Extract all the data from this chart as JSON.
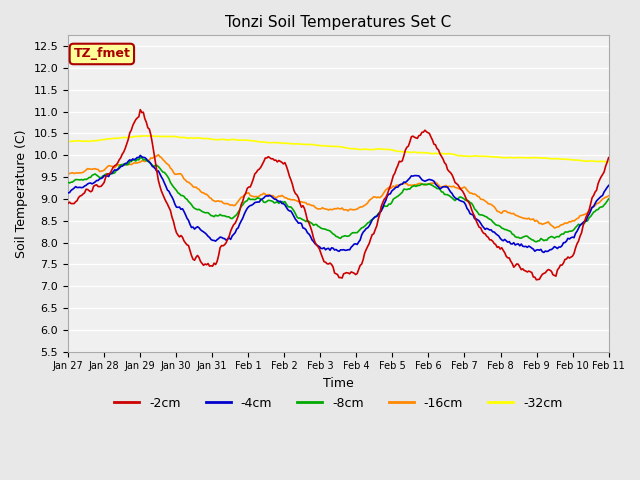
{
  "title": "Tonzi Soil Temperatures Set C",
  "xlabel": "Time",
  "ylabel": "Soil Temperature (C)",
  "ylim": [
    5.5,
    12.75
  ],
  "yticks": [
    5.5,
    6.0,
    6.5,
    7.0,
    7.5,
    8.0,
    8.5,
    9.0,
    9.5,
    10.0,
    10.5,
    11.0,
    11.5,
    12.0,
    12.5
  ],
  "xtick_labels": [
    "Jan 27",
    "Jan 28",
    "Jan 29",
    "Jan 30",
    "Jan 31",
    "Feb 1",
    "Feb 2",
    "Feb 3",
    "Feb 4",
    "Feb 5",
    "Feb 6",
    "Feb 7",
    "Feb 8",
    "Feb 9",
    "Feb 10",
    "Feb 11"
  ],
  "colors": {
    "-2cm": "#cc0000",
    "-4cm": "#0000cc",
    "-8cm": "#00aa00",
    "-16cm": "#ff8800",
    "-32cm": "#ffff00"
  },
  "legend_labels": [
    "-2cm",
    "-4cm",
    "-8cm",
    "-16cm",
    "-32cm"
  ],
  "annotation_text": "TZ_fmet",
  "annotation_color": "#aa0000",
  "annotation_bg": "#ffff99",
  "background_color": "#e8e8e8",
  "plot_bg": "#f0f0f0",
  "n_days": 15,
  "n_labels": 16
}
